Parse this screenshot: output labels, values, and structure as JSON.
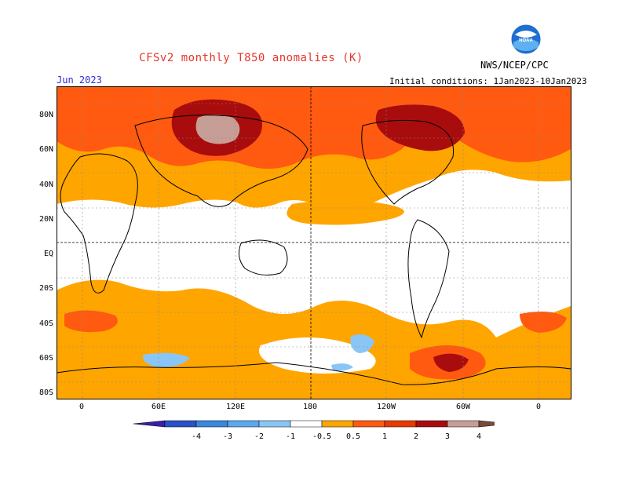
{
  "header": {
    "title": "CFSv2 monthly T850 anomalies (K)",
    "agency": "NWS/NCEP/CPC",
    "valid_month": "Jun 2023",
    "initial_conditions": "Initial conditions: 1Jan2023-10Jan2023",
    "logo_text": "NOAA"
  },
  "map": {
    "lat_labels": [
      "80N",
      "60N",
      "40N",
      "20N",
      "EQ",
      "20S",
      "40S",
      "60S",
      "80S"
    ],
    "lon_labels": [
      "0",
      "60E",
      "120E",
      "180",
      "120W",
      "60W",
      "0"
    ]
  },
  "colorbar": {
    "labels": [
      "-4",
      "-3",
      "-2",
      "-1",
      "-0.5",
      "0.5",
      "1",
      "2",
      "3",
      "4"
    ],
    "colors": [
      "#3a1fa8",
      "#2a52c8",
      "#3a86e0",
      "#5aa8f0",
      "#8ac6f5",
      "#ffffff",
      "#ffa500",
      "#ff5a10",
      "#e83a00",
      "#a80c0c",
      "#c79e96",
      "#7a4a3a"
    ]
  }
}
